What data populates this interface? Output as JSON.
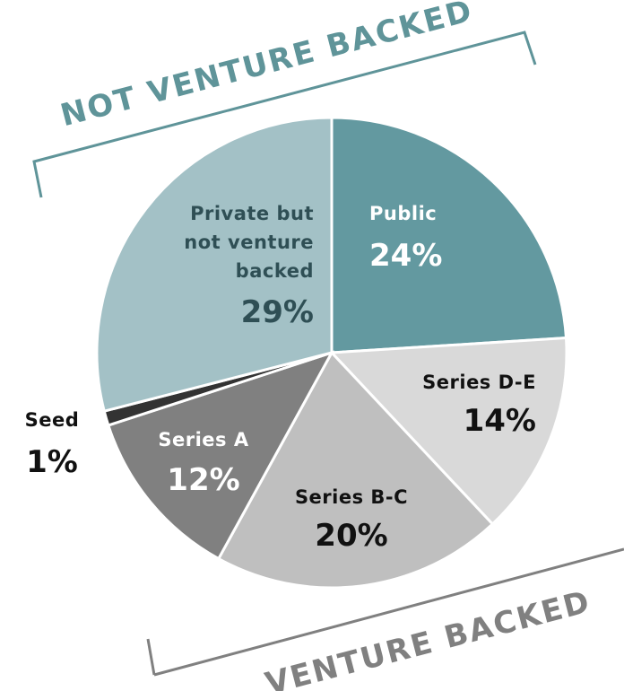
{
  "chart_data": {
    "type": "pie",
    "categories": [
      "Public",
      "Series D-E",
      "Series B-C",
      "Series A",
      "Seed",
      "Private but not venture backed"
    ],
    "values": [
      24,
      14,
      20,
      12,
      1,
      29
    ],
    "value_labels": [
      "24%",
      "14%",
      "20%",
      "12%",
      "1%",
      "29%"
    ],
    "colors": [
      "#6399a0",
      "#d9d9d9",
      "#bfbfbf",
      "#808080",
      "#333333",
      "#a3c1c6"
    ],
    "annotations": [
      "NOT VENTURE BACKED",
      "VENTURE BACKED"
    ]
  }
}
